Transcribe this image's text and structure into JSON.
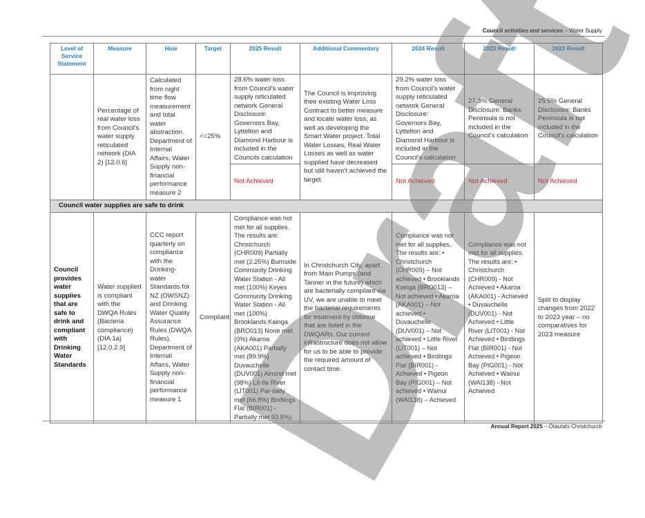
{
  "header": {
    "section": "Council activities and services",
    "subsection": "– Water Supply"
  },
  "columns": [
    "Level of Service Statement",
    "Measure",
    "How",
    "Target",
    "2025 Result",
    "Additional Commentary",
    "2024 Result",
    "2023 Result",
    "2022 Result"
  ],
  "row1": {
    "level": "",
    "measure": "Percentage of real water loss from Council's water supply reticulated network (DIA 2) [12.0.6]",
    "how": "Calculated from night time flow measurement and total water abstraction. Department of Internal Affairs, Water Supply non-financial performance measure 2",
    "target": "<=25%",
    "result_2025": "28.6% water loss from Council's water supply reticulated network General Disclosure: Governors Bay, Lyttelton and Diamond Harbour is included in the Councils calculation",
    "status_2025": "Not Achieved",
    "commentary": "The Council is improving their existing Water Loss Contract to better measure and locate water loss, as well as developing the Smart Water project. Total Water Losses, Real Water Losses as well as water supplied have decreased but still haven't achieved the target.",
    "result_2024": "29.2% water loss from Council's water supply reticulated network General Disclosure: Governors Bay, Lyttelton and Diamond Harbour is included in the Council's calculation",
    "status_2024": "Not Achieved",
    "result_2023": "27.3% General Disclosure: Banks Peninsula is not included in the Council's calculation",
    "status_2023": "Not Achieved",
    "result_2022": "25.5% General Disclosure: Banks Peninsula is not included in the Council's calculation",
    "status_2022": "Not Achieved"
  },
  "section_title": "Council water supplies are safe to drink",
  "row2": {
    "level": "Council provides water supplies that are safe to drink and compliant with Drinking Water Standards",
    "measure": "Water supplied is compliant with the DWQA Rules (Bacteria compliance) (DIA 1a) [12.0.2.9]",
    "how": "CCC report quarterly on compliance with the Drinking-water Standards for NZ (DWSNZ) and Drinking Water Quality Assurance Rules (DWQA Rules). Department of Internal Affairs, Water Supply non-financial performance measure 1",
    "target": "Compliant",
    "result_2025": "Compliance was not met for all supplies. The results are: Christchurch (CHR009) Partially met (2.25%) Burnside Community Drinking Water Station - All met (100%) Keyes Community Drinking Water Station - All met (100%) Brooklands Kainga (BRO013) None met (0%) Akaroa (AKA001) Partially met (89.9%) Duvauchelle (DUV001) Almost met (98%) Lit-tle River (LIT001) Par-tially met (66.8%) Birdlings Flat (BIR001) - Partially met 93.8%)",
    "commentary": "In Christchurch City, apart from Main Pumps (and Tanner in the future) which are bacterially compliant via UV, we are unable to meet the bacterial requirements for treatment by chlorine that are listed in the DWQARs. Our current infrastructure does not allow for us to be able to provide the required amount of contact time.",
    "result_2024": "Compliance was not met for all supplies. The results are: • Christchurch (CHR009) – Not achieved • Brooklands Kainga (BRO013) – Not achieved • Akaroa (AKA001) – Not achieved • Duvauchelle (DUV001) – Not achieved • Little River (LIT001) – Not achieved • Birdlings Flat (BIR001) - Achieved • Pigeon Bay (PIG001) – Not achieved • Wainui (WAI138) – Achieved",
    "result_2023": "Compliance was not met for all supplies. The results are: • Christchurch (CHR009) - Not Achieved • Akaroa (AKA001) - Achieved • Duvauchelle (DUV001) - Not Achieved • Little River (LIT001) - Not Achieved • Birdlings Flat (BIR001) - Not Achieved • Pigeon Bay (PIG001) - Not Achieved • Wainui (WAI138) - Not Achieved",
    "result_2022": "Split to display changes from 2022 to 2023 year – no comparatives for 2023 measure"
  },
  "footer": {
    "title": "Annual Report 2025",
    "subtitle": "– Ōtautahi Christchurch"
  },
  "watermark": "Draft",
  "colors": {
    "header_text": "#1a7fd4",
    "not_achieved": "#e8101a",
    "section_bg": "#d9d9d9"
  }
}
